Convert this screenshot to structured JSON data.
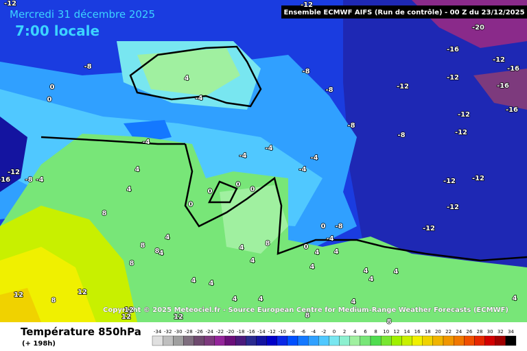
{
  "header": {
    "date": "Mercredi 31 décembre 2025",
    "time": "7:00 locale",
    "model": "Ensemble ECMWF AIFS  (Run de contrôle)  - 00 Z du 23/12/2025",
    "copyright": "Copyright © 2025 Meteociel.fr - Source European Centre for Medium-Range Weather Forecasts (ECMWF)"
  },
  "footer": {
    "variable": "Température 850hPa",
    "lead": "(+ 198h)"
  },
  "legend": {
    "values": [
      -34,
      -32,
      -30,
      -28,
      -26,
      -24,
      -22,
      -20,
      -18,
      -16,
      -14,
      -12,
      -10,
      -8,
      -6,
      -4,
      -2,
      0,
      2,
      4,
      6,
      8,
      10,
      12,
      14,
      16,
      18,
      20,
      22,
      24,
      26,
      28,
      30,
      32,
      34
    ],
    "colors": [
      "#e0e0e0",
      "#bfbfbf",
      "#9f9f9f",
      "#7f6f7f",
      "#6e4a6e",
      "#7d3a7d",
      "#94259a",
      "#6b0f7a",
      "#4b1a7c",
      "#2a2a8e",
      "#1414a0",
      "#0000c8",
      "#0a28e6",
      "#0050ff",
      "#1478ff",
      "#30a0ff",
      "#50c8ff",
      "#78e6f0",
      "#8cf0d0",
      "#a0f0a0",
      "#78e678",
      "#50dc50",
      "#78e632",
      "#a0f000",
      "#c8f000",
      "#f0f000",
      "#f0d200",
      "#f0b400",
      "#f09600",
      "#f07800",
      "#f05000",
      "#e62800",
      "#d20000",
      "#a00000",
      "#000000"
    ]
  },
  "map": {
    "labels": [
      "-12",
      "-12",
      "-20",
      "-16",
      "-12",
      "-16",
      "-12",
      "-8",
      "4",
      "-8",
      "-12",
      "-16",
      "0",
      "-8",
      "-4",
      "0",
      "-16",
      "-12",
      "-8",
      "-8",
      "-12",
      "-4",
      "-4",
      "-4",
      "-4",
      "4",
      "-4",
      "-12",
      "-8",
      "-16",
      "-4",
      "-12",
      "-12",
      "0",
      "0",
      "0",
      "4",
      "0",
      "-12",
      "8",
      "0",
      "-8",
      "-12",
      "4",
      "8",
      "8",
      "4",
      "8",
      "-4",
      "4",
      "0",
      "4",
      "4",
      "8",
      "4",
      "4",
      "4",
      "4",
      "4",
      "4",
      "4",
      "12",
      "12",
      "8",
      "4",
      "4",
      "12",
      "12",
      "12",
      "8",
      "4",
      "4",
      "8"
    ]
  }
}
